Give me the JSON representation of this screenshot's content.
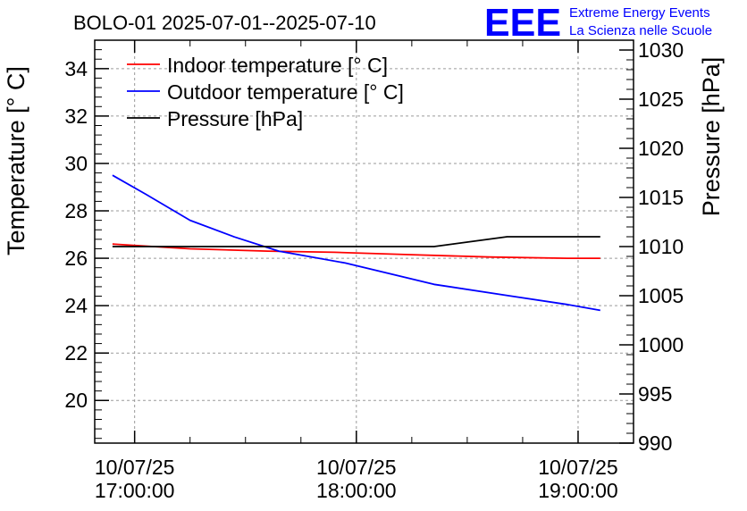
{
  "chart_data": {
    "type": "line",
    "title": "BOLO-01 2025-07-01--2025-07-10",
    "ylabel": "Temperature [° C]",
    "y2label": "Pressure [hPa]",
    "ylim": [
      18.2,
      35.2
    ],
    "y2lim": [
      990,
      1031
    ],
    "xlim_hours": [
      16.82,
      19.25
    ],
    "x_ticks": [
      {
        "t": 17,
        "date": "10/07/25",
        "time": "17:00:00"
      },
      {
        "t": 18,
        "date": "10/07/25",
        "time": "18:00:00"
      },
      {
        "t": 19,
        "date": "10/07/25",
        "time": "19:00:00"
      }
    ],
    "y_ticks": [
      20,
      22,
      24,
      26,
      28,
      30,
      32,
      34
    ],
    "y2_ticks": [
      990,
      995,
      1000,
      1005,
      1010,
      1015,
      1020,
      1025,
      1030
    ],
    "grid": true,
    "legend_position": "top-left",
    "series": [
      {
        "name": "Indoor temperature [° C]",
        "axis": "left",
        "color": "#ff0000",
        "points": [
          [
            16.9,
            26.6
          ],
          [
            17.25,
            26.4
          ],
          [
            17.6,
            26.3
          ],
          [
            17.9,
            26.25
          ],
          [
            18.25,
            26.15
          ],
          [
            18.6,
            26.05
          ],
          [
            18.95,
            26.0
          ],
          [
            19.1,
            26.0
          ]
        ]
      },
      {
        "name": "Outdoor temperature [° C]",
        "axis": "left",
        "color": "#0000ff",
        "points": [
          [
            16.9,
            29.5
          ],
          [
            17.05,
            28.7
          ],
          [
            17.25,
            27.6
          ],
          [
            17.45,
            26.9
          ],
          [
            17.65,
            26.3
          ],
          [
            17.95,
            25.8
          ],
          [
            18.35,
            24.9
          ],
          [
            18.7,
            24.4
          ],
          [
            18.95,
            24.05
          ],
          [
            19.1,
            23.8
          ]
        ]
      },
      {
        "name": "Pressure [hPa]",
        "axis": "right",
        "color": "#000000",
        "points": [
          [
            16.9,
            1010
          ],
          [
            17.5,
            1010
          ],
          [
            18.35,
            1010
          ],
          [
            18.68,
            1011
          ],
          [
            19.1,
            1011
          ]
        ]
      }
    ]
  },
  "logo": {
    "mark": "EEE",
    "line1": "Extreme Energy Events",
    "line2": "La Scienza nelle Scuole",
    "color": "#0000ff"
  }
}
